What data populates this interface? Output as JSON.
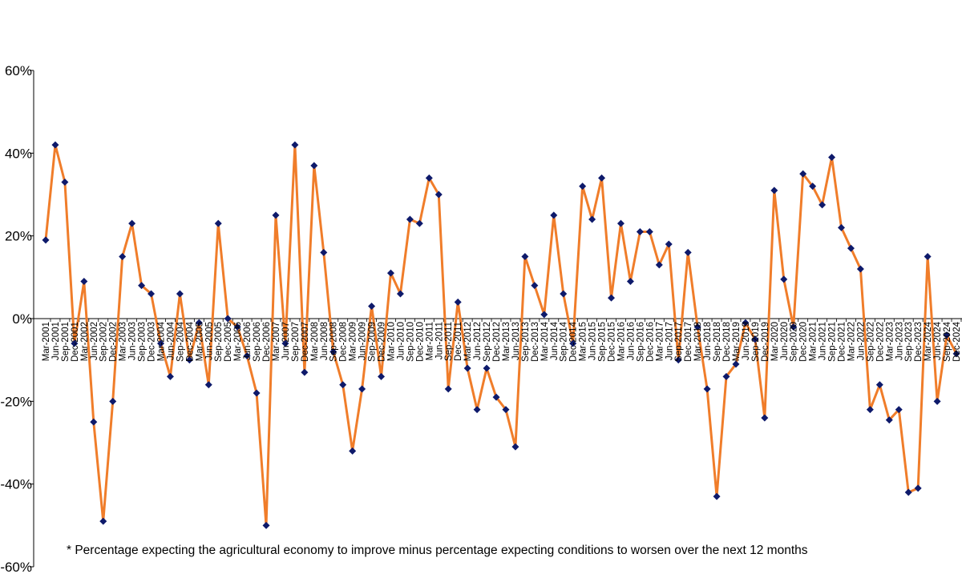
{
  "chart_data": {
    "type": "line",
    "title": "",
    "xlabel": "",
    "ylabel": "",
    "ylim": [
      -60,
      60
    ],
    "yticks": [
      "60%",
      "40%",
      "20%",
      "0%",
      "-20%",
      "-40%",
      "-60%"
    ],
    "ytick_values": [
      60,
      40,
      20,
      0,
      -20,
      -40,
      -60
    ],
    "categories": [
      "Mar-2001",
      "Jun-2001",
      "Sep-2001",
      "Dec-2001",
      "Mar-2002",
      "Jun-2002",
      "Sep-2002",
      "Dec-2002",
      "Mar-2003",
      "Jun-2003",
      "Sep-2003",
      "Dec-2003",
      "Mar-2004",
      "Jun-2004",
      "Sep-2004",
      "Dec-2004",
      "Mar-2005",
      "Jun-2005",
      "Sep-2005",
      "Dec-2005",
      "Mar-2006",
      "Jun-2006",
      "Sep-2006",
      "Dec-2006",
      "Mar-2007",
      "Jun-2007",
      "Sep-2007",
      "Dec-2007",
      "Mar-2008",
      "Jun-2008",
      "Sep-2008",
      "Dec-2008",
      "Mar-2009",
      "Jun-2009",
      "Sep-2009",
      "Dec-2009",
      "Mar-2010",
      "Jun-2010",
      "Sep-2010",
      "Dec-2010",
      "Mar-2011",
      "Jun-2011",
      "Sep-2011",
      "Dec-2011",
      "Mar-2012",
      "Jun-2012",
      "Sep-2012",
      "Dec-2012",
      "Mar-2013",
      "Jun-2013",
      "Sep-2013",
      "Dec-2013",
      "Mar-2014",
      "Jun-2014",
      "Sep-2014",
      "Dec-2014",
      "Mar-2015",
      "Jun-2015",
      "Sep-2015",
      "Dec-2015",
      "Mar-2016",
      "Jun-2016",
      "Sep-2016",
      "Dec-2016",
      "Mar-2017",
      "Jun-2017",
      "Sep-2017",
      "Dec-2017",
      "Mar-2018",
      "Jun-2018",
      "Sep-2018",
      "Dec-2018",
      "Mar-2019",
      "Jun-2019",
      "Sep-2019",
      "Dec-2019",
      "Mar-2020",
      "Jun-2020",
      "Sep-2020",
      "Dec-2020",
      "Mar-2021",
      "Jun-2021",
      "Sep-2021",
      "Dec-2021",
      "Mar-2022",
      "Jun-2022",
      "Sep-2022",
      "Dec-2022",
      "Mar-2023",
      "Jun-2023",
      "Sep-2023",
      "Dec-2023",
      "Mar-2024",
      "Jun-2024",
      "Sep-2024",
      "Dec-2024"
    ],
    "series": [
      {
        "values": [
          19,
          42,
          33,
          -6,
          9,
          -25,
          -49,
          -20,
          15,
          23,
          8,
          6,
          -6,
          -14,
          6,
          -10,
          -1,
          -16,
          23,
          0,
          -2,
          -9,
          -18,
          -50,
          25,
          -6,
          42,
          -13,
          37,
          16,
          -8,
          -16,
          -32,
          -17,
          3,
          -14,
          11,
          6,
          24,
          23,
          34,
          30,
          -17,
          4,
          -12,
          -22,
          -12,
          -19,
          -22,
          -31,
          15,
          8,
          1,
          25,
          6,
          -6,
          32,
          24,
          34,
          5,
          23,
          9,
          21,
          21,
          13,
          18,
          -10,
          16,
          -2,
          -17,
          -43,
          -14,
          -11,
          -1,
          -5,
          -24,
          31,
          9.5,
          -2,
          35,
          32,
          27.5,
          39,
          22,
          17,
          12,
          -22,
          -16,
          -24.5,
          -22,
          -42,
          -41,
          15,
          -20,
          -4,
          -8.5
        ]
      }
    ],
    "line_color": "#f07d2a",
    "marker_color": "#0e1a6b",
    "marker": "diamond",
    "grid": false,
    "legend": "none"
  },
  "footnote": "* Percentage expecting the agricultural economy to improve minus percentage expecting conditions to worsen over the next 12 months"
}
